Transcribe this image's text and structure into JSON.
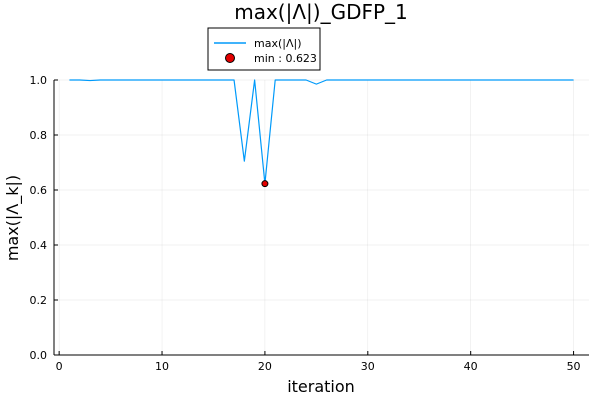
{
  "chart_data": {
    "type": "line",
    "title": "max(|Λ|)_GDFP_1",
    "xlabel": "iteration",
    "ylabel": "max(|Λ_k|)",
    "xlim": [
      -0.5,
      51.5
    ],
    "ylim": [
      0.0,
      1.0
    ],
    "xticks": [
      0,
      10,
      20,
      30,
      40,
      50
    ],
    "xtick_labels": [
      "0",
      "10",
      "20",
      "30",
      "40",
      "50"
    ],
    "yticks": [
      0.0,
      0.2,
      0.4,
      0.6,
      0.8,
      1.0
    ],
    "ytick_labels": [
      "0.0",
      "0.2",
      "0.4",
      "0.6",
      "0.8",
      "1.0"
    ],
    "grid": true,
    "legend_position": "top-center",
    "series": [
      {
        "name": "max(|Λ|)",
        "color": "#009AFA",
        "x": [
          1,
          2,
          3,
          4,
          5,
          6,
          7,
          8,
          9,
          10,
          11,
          12,
          13,
          14,
          15,
          16,
          17,
          18,
          19,
          20,
          21,
          22,
          23,
          24,
          25,
          26,
          27,
          28,
          29,
          30,
          31,
          32,
          33,
          34,
          35,
          36,
          37,
          38,
          39,
          40,
          41,
          42,
          43,
          44,
          45,
          46,
          47,
          48,
          49,
          50
        ],
        "y": [
          1.0,
          1.0,
          0.998,
          1.0,
          1.0,
          1.0,
          1.0,
          1.0,
          1.0,
          1.0,
          1.0,
          1.0,
          1.0,
          1.0,
          1.0,
          1.0,
          1.0,
          0.705,
          1.0,
          0.623,
          1.0,
          1.0,
          1.0,
          1.0,
          0.985,
          1.0,
          1.0,
          1.0,
          1.0,
          1.0,
          1.0,
          1.0,
          1.0,
          1.0,
          1.0,
          1.0,
          1.0,
          1.0,
          1.0,
          1.0,
          1.0,
          1.0,
          1.0,
          1.0,
          1.0,
          1.0,
          1.0,
          1.0,
          1.0,
          1.0
        ]
      }
    ],
    "markers": [
      {
        "name": "min : 0.623",
        "color": "#E20000",
        "x": 20,
        "y": 0.623
      }
    ]
  }
}
